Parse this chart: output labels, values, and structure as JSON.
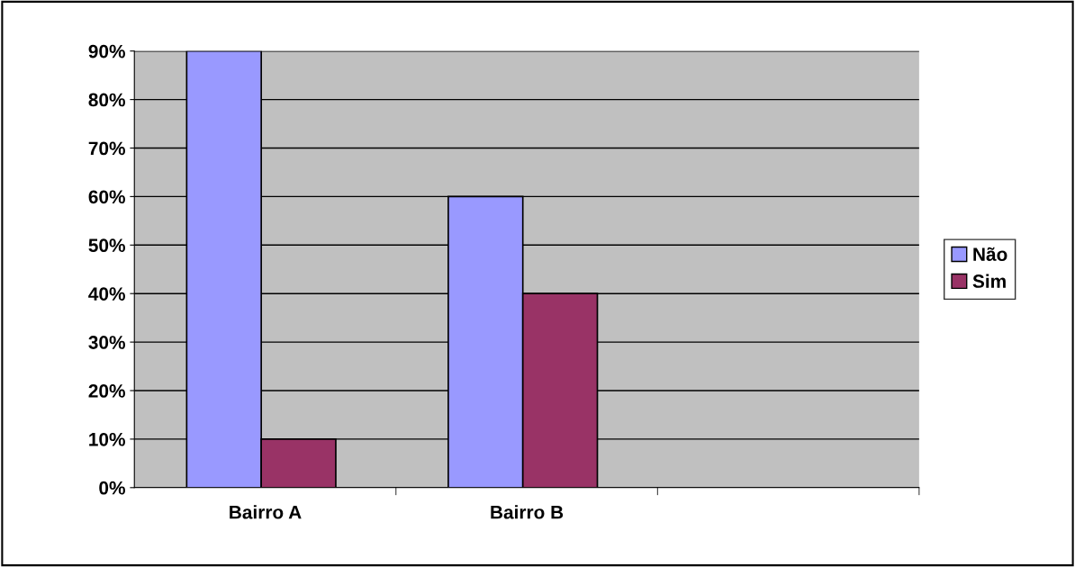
{
  "chart_data": {
    "type": "bar",
    "categories": [
      "Bairro A",
      "Bairro B",
      null
    ],
    "series": [
      {
        "name": "Não",
        "color": "#9999ff",
        "values": [
          90,
          60,
          null
        ]
      },
      {
        "name": "Sim",
        "color": "#993366",
        "values": [
          10,
          40,
          null
        ]
      }
    ],
    "ylim": [
      0,
      90
    ],
    "yticks": [
      {
        "value": 0,
        "label": "0%"
      },
      {
        "value": 10,
        "label": "10%"
      },
      {
        "value": 20,
        "label": "20%"
      },
      {
        "value": 30,
        "label": "30%"
      },
      {
        "value": 40,
        "label": "40%"
      },
      {
        "value": 50,
        "label": "50%"
      },
      {
        "value": 60,
        "label": "60%"
      },
      {
        "value": 70,
        "label": "70%"
      },
      {
        "value": 80,
        "label": "80%"
      },
      {
        "value": 90,
        "label": "90%"
      }
    ],
    "grid": "y",
    "legend": "right"
  }
}
